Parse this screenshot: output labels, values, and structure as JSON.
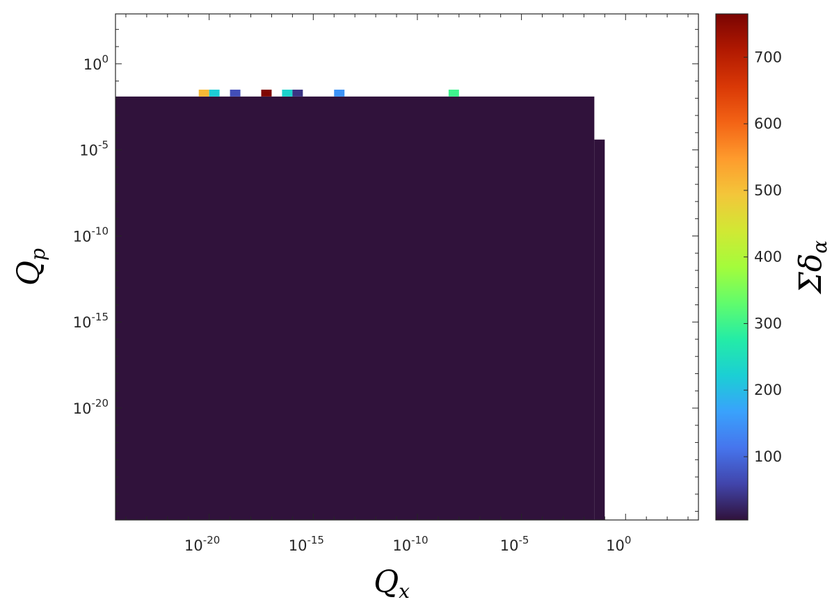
{
  "chart_data": {
    "type": "heatmap",
    "title": "",
    "xlabel": {
      "main": "Q",
      "sub": "x"
    },
    "ylabel": {
      "main": "Q",
      "sub": "p"
    },
    "x_scale": "log",
    "y_scale": "log",
    "xlim_exp": [
      -24.5,
      3.5
    ],
    "ylim_exp": [
      -26.5,
      2.9
    ],
    "x_ticks": [
      {
        "base": "10",
        "exp": "-20",
        "value_exp": -20
      },
      {
        "base": "10",
        "exp": "-15",
        "value_exp": -15
      },
      {
        "base": "10",
        "exp": "-10",
        "value_exp": -10
      },
      {
        "base": "10",
        "exp": "-5",
        "value_exp": -5
      },
      {
        "base": "10",
        "exp": "0",
        "value_exp": 0
      }
    ],
    "y_ticks": [
      {
        "base": "10",
        "exp": "0",
        "value_exp": 0
      },
      {
        "base": "10",
        "exp": "-5",
        "value_exp": -5
      },
      {
        "base": "10",
        "exp": "-10",
        "value_exp": -10
      },
      {
        "base": "10",
        "exp": "-15",
        "value_exp": -15
      },
      {
        "base": "10",
        "exp": "-20",
        "value_exp": -20
      }
    ],
    "grid": false,
    "background_value": 5,
    "cells": [
      {
        "x_exp": [
          -24.5,
          -1.5
        ],
        "y_exp": [
          -26.5,
          -1.9
        ],
        "value": 5
      },
      {
        "x_exp": [
          -1.5,
          -1.0
        ],
        "y_exp": [
          -26.5,
          -4.4
        ],
        "value": 5
      },
      {
        "x_exp": [
          -20.5,
          -20.0
        ],
        "y_exp": [
          -1.9,
          -1.5
        ],
        "value": 510
      },
      {
        "x_exp": [
          -20.0,
          -19.5
        ],
        "y_exp": [
          -1.9,
          -1.5
        ],
        "value": 220
      },
      {
        "x_exp": [
          -19.0,
          -18.5
        ],
        "y_exp": [
          -1.9,
          -1.5
        ],
        "value": 70
      },
      {
        "x_exp": [
          -17.5,
          -17.0
        ],
        "y_exp": [
          -1.9,
          -1.5
        ],
        "value": 760
      },
      {
        "x_exp": [
          -16.5,
          -16.0
        ],
        "y_exp": [
          -1.9,
          -1.5
        ],
        "value": 230
      },
      {
        "x_exp": [
          -16.0,
          -15.5
        ],
        "y_exp": [
          -1.9,
          -1.5
        ],
        "value": 40
      },
      {
        "x_exp": [
          -14.0,
          -13.5
        ],
        "y_exp": [
          -1.9,
          -1.5
        ],
        "value": 150
      },
      {
        "x_exp": [
          -8.5,
          -8.0
        ],
        "y_exp": [
          -1.9,
          -1.5
        ],
        "value": 300
      }
    ],
    "colorbar": {
      "label": {
        "main": "Σδ",
        "sub": "α"
      },
      "min": 5,
      "max": 765,
      "ticks": [
        {
          "value": 100,
          "label": "100"
        },
        {
          "value": 200,
          "label": "200"
        },
        {
          "value": 300,
          "label": "300"
        },
        {
          "value": 400,
          "label": "400"
        },
        {
          "value": 500,
          "label": "500"
        },
        {
          "value": 600,
          "label": "600"
        },
        {
          "value": 700,
          "label": "700"
        }
      ],
      "colormap": [
        "#30123b",
        "#4145ab",
        "#4675ed",
        "#39a2fc",
        "#1bcfd4",
        "#24eca6",
        "#61fc6c",
        "#a4fc3b",
        "#d1e834",
        "#f3c63a",
        "#fe9b2d",
        "#f36315",
        "#d93806",
        "#b11901",
        "#7a0402"
      ]
    }
  }
}
